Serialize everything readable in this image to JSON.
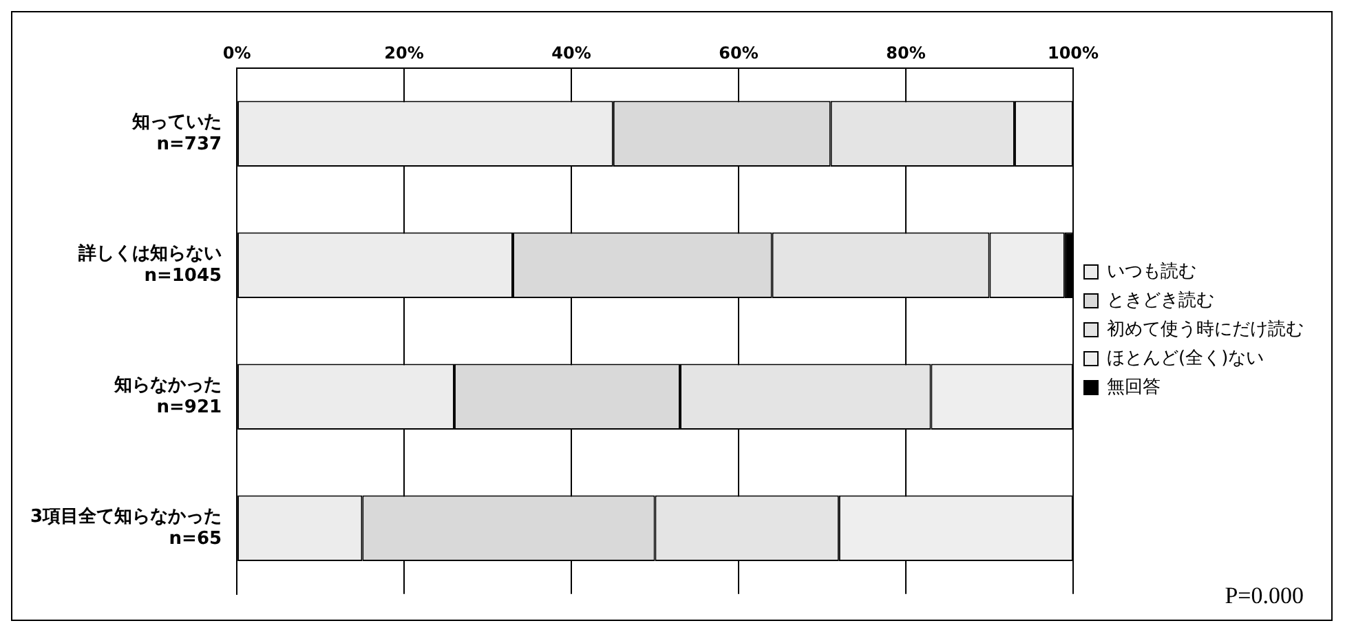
{
  "chart_data": {
    "type": "bar",
    "orientation": "horizontal",
    "stacked": true,
    "categories": [
      "知っていた\nn=737",
      "詳しくは知らない\nn=1045",
      "知らなかった\nn=921",
      "3項目全て知らなかった\nn=65"
    ],
    "series": [
      {
        "name": "いつも読む",
        "color": "#ececec",
        "values": [
          45,
          33,
          26,
          15
        ]
      },
      {
        "name": "ときどき読む",
        "color": "#d9d9d9",
        "values": [
          26,
          31,
          27,
          35
        ]
      },
      {
        "name": "初めて使う時にだけ読む",
        "color": "#e4e4e4",
        "values": [
          22,
          26,
          30,
          22
        ]
      },
      {
        "name": "ほとんど(全く)ない",
        "color": "#eeeeee",
        "values": [
          7,
          9,
          17,
          28
        ]
      },
      {
        "name": "無回答",
        "color": "#000000",
        "values": [
          0,
          1,
          0,
          0
        ]
      }
    ],
    "xlim": [
      0,
      100
    ],
    "xticks": [
      {
        "value": 0,
        "label": "0%"
      },
      {
        "value": 20,
        "label": "20%"
      },
      {
        "value": 40,
        "label": "40%"
      },
      {
        "value": 60,
        "label": "60%"
      },
      {
        "value": 80,
        "label": "80%"
      },
      {
        "value": 100,
        "label": "100%"
      }
    ],
    "grid": "x",
    "legend": "right",
    "annotations": [
      "P=0.000"
    ]
  }
}
